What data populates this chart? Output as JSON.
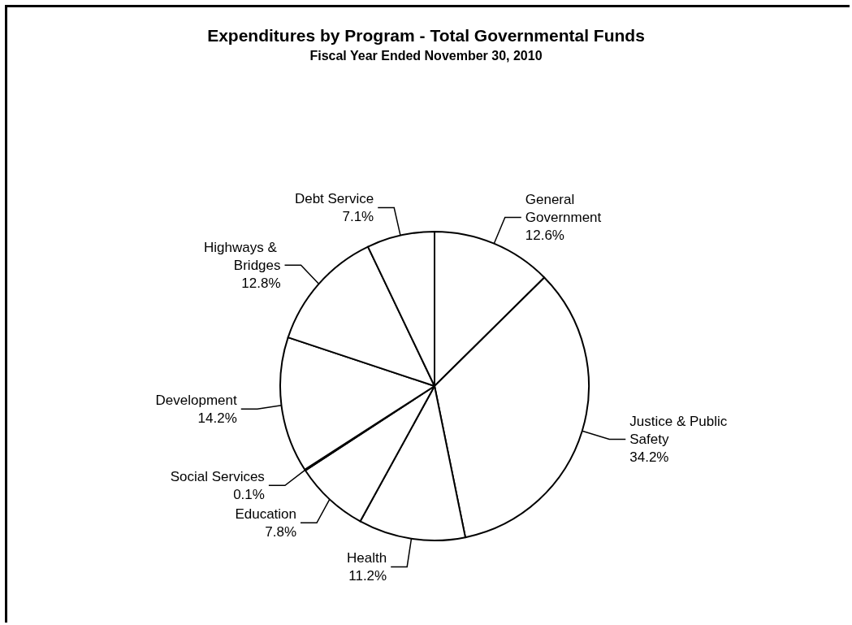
{
  "chart_data": {
    "type": "pie",
    "title": "Expenditures by Program - Total Governmental Funds",
    "subtitle": "Fiscal Year Ended November 30, 2010",
    "categories": [
      "General Government",
      "Justice & Public Safety",
      "Health",
      "Education",
      "Social Services",
      "Development",
      "Highways & Bridges",
      "Debt Service"
    ],
    "values": [
      12.6,
      34.2,
      11.2,
      7.8,
      0.1,
      14.2,
      12.8,
      7.1
    ],
    "value_labels": [
      "12.6%",
      "34.2%",
      "11.2%",
      "7.8%",
      "0.1%",
      "14.2%",
      "12.8%",
      "7.1%"
    ],
    "colors": [
      "#ffffff",
      "#ffffff",
      "#ffffff",
      "#ffffff",
      "#ffffff",
      "#ffffff",
      "#ffffff",
      "#ffffff"
    ]
  }
}
